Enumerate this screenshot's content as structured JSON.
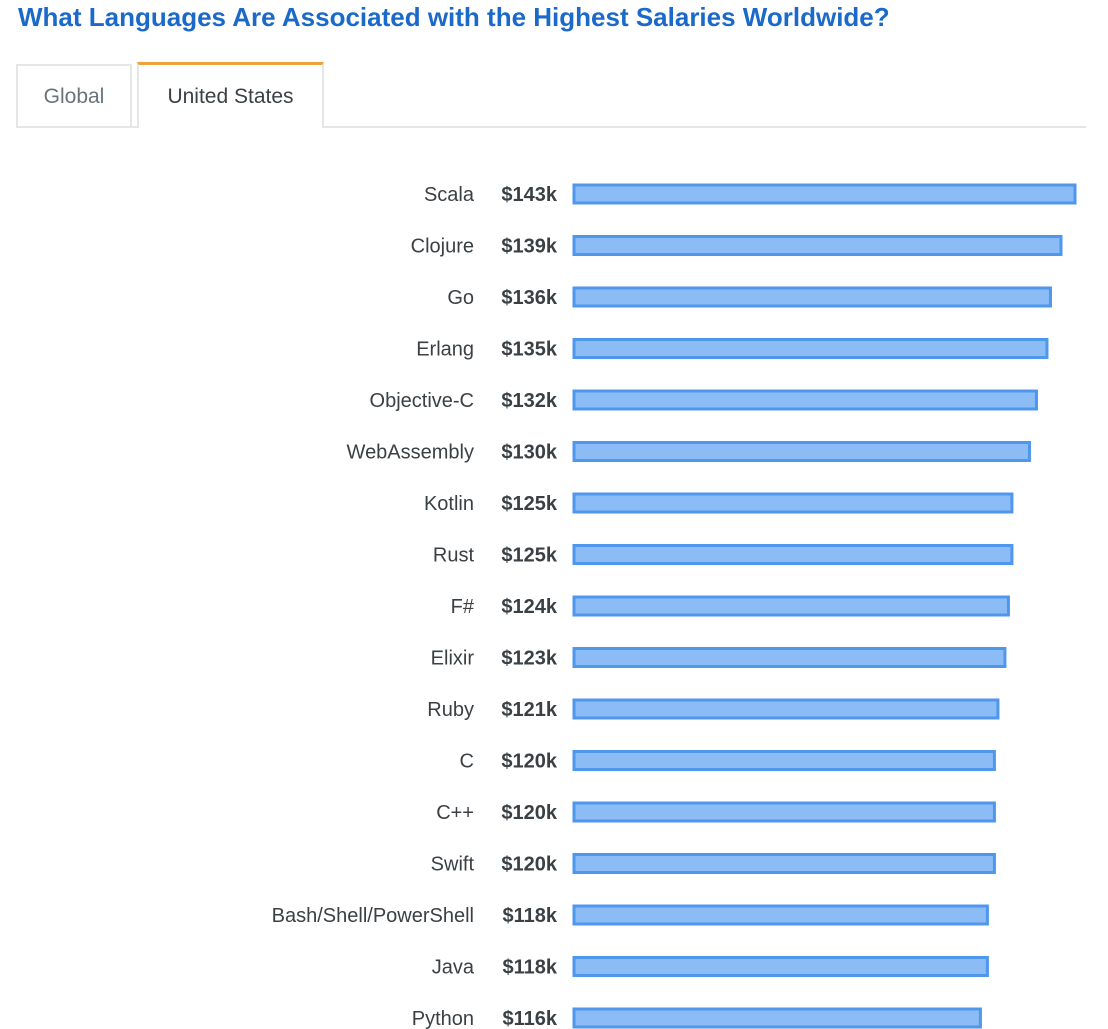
{
  "title": "What Languages Are Associated with the Highest Salaries Worldwide?",
  "tabs": [
    {
      "label": "Global",
      "active": false
    },
    {
      "label": "United States",
      "active": true
    }
  ],
  "colors": {
    "title": "#1b6ac9",
    "active_tab_accent": "#f2a13a",
    "bar_fill": "#8cbcf6",
    "bar_stroke": "#4f97ec"
  },
  "chart_data": {
    "type": "bar",
    "orientation": "horizontal",
    "categories": [
      "Scala",
      "Clojure",
      "Go",
      "Erlang",
      "Objective-C",
      "WebAssembly",
      "Kotlin",
      "Rust",
      "F#",
      "Elixir",
      "Ruby",
      "C",
      "C++",
      "Swift",
      "Bash/Shell/PowerShell",
      "Java",
      "Python"
    ],
    "values": [
      143,
      139,
      136,
      135,
      132,
      130,
      125,
      125,
      124,
      123,
      121,
      120,
      120,
      120,
      118,
      118,
      116
    ],
    "value_labels": [
      "$143k",
      "$139k",
      "$136k",
      "$135k",
      "$132k",
      "$130k",
      "$125k",
      "$125k",
      "$124k",
      "$123k",
      "$121k",
      "$120k",
      "$120k",
      "$120k",
      "$118k",
      "$118k",
      "$116k"
    ],
    "title": "",
    "xlabel": "",
    "ylabel": "",
    "xlim": [
      0,
      143
    ],
    "grid": false,
    "legend": "none"
  }
}
